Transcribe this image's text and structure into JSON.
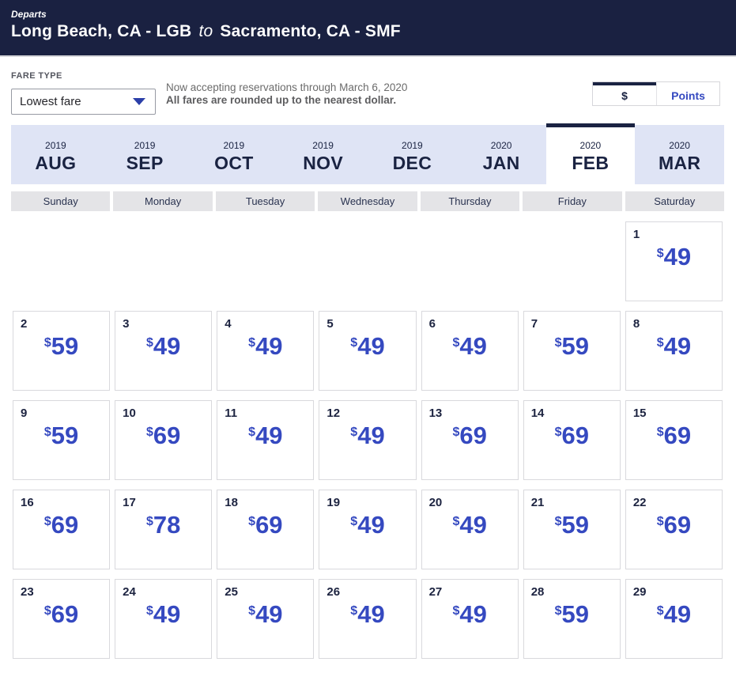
{
  "header": {
    "departs_label": "Departs",
    "origin": "Long Beach, CA - LGB",
    "to_word": "to",
    "destination": "Sacramento, CA - SMF"
  },
  "fare_type": {
    "label": "FARE TYPE",
    "selected_value": "Lowest fare"
  },
  "notice": {
    "line1": "Now accepting reservations through March 6, 2020",
    "line2": "All fares are rounded up to the nearest dollar."
  },
  "currency_toggle": {
    "dollar_label": "$",
    "points_label": "Points",
    "selected": "dollar"
  },
  "month_tabs": [
    {
      "year": "2019",
      "month": "AUG",
      "selected": false
    },
    {
      "year": "2019",
      "month": "SEP",
      "selected": false
    },
    {
      "year": "2019",
      "month": "OCT",
      "selected": false
    },
    {
      "year": "2019",
      "month": "NOV",
      "selected": false
    },
    {
      "year": "2019",
      "month": "DEC",
      "selected": false
    },
    {
      "year": "2020",
      "month": "JAN",
      "selected": false
    },
    {
      "year": "2020",
      "month": "FEB",
      "selected": true
    },
    {
      "year": "2020",
      "month": "MAR",
      "selected": false
    }
  ],
  "weekdays": [
    "Sunday",
    "Monday",
    "Tuesday",
    "Wednesday",
    "Thursday",
    "Friday",
    "Saturday"
  ],
  "calendar": {
    "currency_symbol": "$",
    "leading_blanks": 6,
    "days": [
      {
        "day": 1,
        "price": "49"
      },
      {
        "day": 2,
        "price": "59"
      },
      {
        "day": 3,
        "price": "49"
      },
      {
        "day": 4,
        "price": "49"
      },
      {
        "day": 5,
        "price": "49"
      },
      {
        "day": 6,
        "price": "49"
      },
      {
        "day": 7,
        "price": "59"
      },
      {
        "day": 8,
        "price": "49"
      },
      {
        "day": 9,
        "price": "59"
      },
      {
        "day": 10,
        "price": "69"
      },
      {
        "day": 11,
        "price": "49"
      },
      {
        "day": 12,
        "price": "49"
      },
      {
        "day": 13,
        "price": "69"
      },
      {
        "day": 14,
        "price": "69"
      },
      {
        "day": 15,
        "price": "69"
      },
      {
        "day": 16,
        "price": "69"
      },
      {
        "day": 17,
        "price": "78"
      },
      {
        "day": 18,
        "price": "69"
      },
      {
        "day": 19,
        "price": "49"
      },
      {
        "day": 20,
        "price": "49"
      },
      {
        "day": 21,
        "price": "59"
      },
      {
        "day": 22,
        "price": "69"
      },
      {
        "day": 23,
        "price": "69"
      },
      {
        "day": 24,
        "price": "49"
      },
      {
        "day": 25,
        "price": "49"
      },
      {
        "day": 26,
        "price": "49"
      },
      {
        "day": 27,
        "price": "49"
      },
      {
        "day": 28,
        "price": "59"
      },
      {
        "day": 29,
        "price": "49"
      }
    ]
  },
  "colors": {
    "header_navy": "#1a2141",
    "tab_navy": "#1a2342",
    "tab_lavender": "#dfe4f5",
    "price_blue": "#3549c0",
    "weekday_gray": "#e4e4e7",
    "cell_border": "#d9d9dd"
  }
}
